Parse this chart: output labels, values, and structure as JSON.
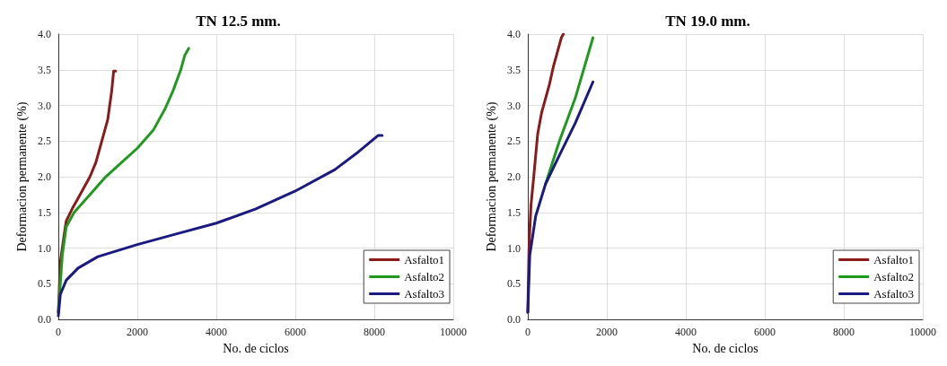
{
  "chart_data": [
    {
      "type": "line",
      "title": "TN 12.5 mm.",
      "xlabel": "No. de ciclos",
      "ylabel": "Deformacion permanente (%)",
      "xlim": [
        0,
        10000
      ],
      "xticks": [
        0,
        2000,
        4000,
        6000,
        8000,
        10000
      ],
      "ylim": [
        0,
        4
      ],
      "yticks": [
        {
          "value": 0,
          "label": "0.0"
        },
        0.5,
        {
          "value": 1,
          "label": "1.0"
        },
        1.5,
        {
          "value": 2,
          "label": "2.0"
        },
        2.5,
        {
          "value": 3,
          "label": "3.0"
        },
        3.5,
        {
          "value": 4,
          "label": "4.0"
        }
      ],
      "grid": true,
      "legend": "bottom right",
      "marker": "none",
      "line_style": "solid",
      "series": [
        {
          "name": "Asfalto1",
          "color": "#8b1a1a",
          "x": [
            0,
            50,
            150,
            200,
            350,
            500,
            650,
            800,
            950,
            1050,
            1150,
            1250,
            1350,
            1400,
            1450
          ],
          "values": [
            0.1,
            0.8,
            1.2,
            1.38,
            1.55,
            1.7,
            1.85,
            2.0,
            2.2,
            2.4,
            2.6,
            2.8,
            3.2,
            3.48,
            3.48
          ]
        },
        {
          "name": "Asfalto2",
          "color": "#1f9a1f",
          "x": [
            0,
            100,
            200,
            400,
            800,
            1200,
            1600,
            2000,
            2400,
            2700,
            2900,
            3100,
            3200,
            3300
          ],
          "values": [
            0.1,
            0.9,
            1.3,
            1.5,
            1.75,
            2.0,
            2.2,
            2.4,
            2.65,
            2.95,
            3.2,
            3.5,
            3.7,
            3.8
          ]
        },
        {
          "name": "Asfalto3",
          "color": "#1a1a80",
          "x": [
            0,
            50,
            200,
            500,
            1000,
            2000,
            3000,
            4000,
            5000,
            6000,
            7000,
            7600,
            8100,
            8200
          ],
          "values": [
            0.05,
            0.35,
            0.55,
            0.72,
            0.88,
            1.05,
            1.2,
            1.35,
            1.55,
            1.8,
            2.1,
            2.35,
            2.58,
            2.58
          ]
        }
      ]
    },
    {
      "type": "line",
      "title": "TN 19.0 mm.",
      "xlabel": "No. de ciclos",
      "ylabel": "Deformacion permanente (%)",
      "xlim": [
        0,
        10000
      ],
      "xticks": [
        0,
        2000,
        4000,
        6000,
        8000,
        10000
      ],
      "ylim": [
        0,
        4
      ],
      "yticks": [
        {
          "value": 0,
          "label": "0.0"
        },
        0.5,
        {
          "value": 1,
          "label": "1.0"
        },
        1.5,
        {
          "value": 2,
          "label": "2.0"
        },
        2.5,
        {
          "value": 3,
          "label": "3.0"
        },
        3.5,
        {
          "value": 4,
          "label": "4.0"
        }
      ],
      "grid": true,
      "legend": "bottom right",
      "marker": "none",
      "line_style": "solid",
      "series": [
        {
          "name": "Asfalto1",
          "color": "#8b1a1a",
          "x": [
            0,
            30,
            80,
            150,
            200,
            250,
            350,
            450,
            550,
            650,
            750,
            850,
            900
          ],
          "values": [
            0.1,
            1.0,
            1.6,
            2.0,
            2.3,
            2.6,
            2.9,
            3.1,
            3.3,
            3.55,
            3.75,
            3.95,
            4.0
          ]
        },
        {
          "name": "Asfalto2",
          "color": "#1f9a1f",
          "x": [
            450,
            800,
            1200,
            1650
          ],
          "values": [
            1.9,
            2.5,
            3.1,
            3.95
          ]
        },
        {
          "name": "Asfalto3",
          "color": "#1a1a80",
          "x": [
            0,
            50,
            200,
            450,
            800,
            1200,
            1650
          ],
          "values": [
            0.1,
            0.9,
            1.45,
            1.9,
            2.3,
            2.75,
            3.33
          ]
        }
      ]
    }
  ]
}
